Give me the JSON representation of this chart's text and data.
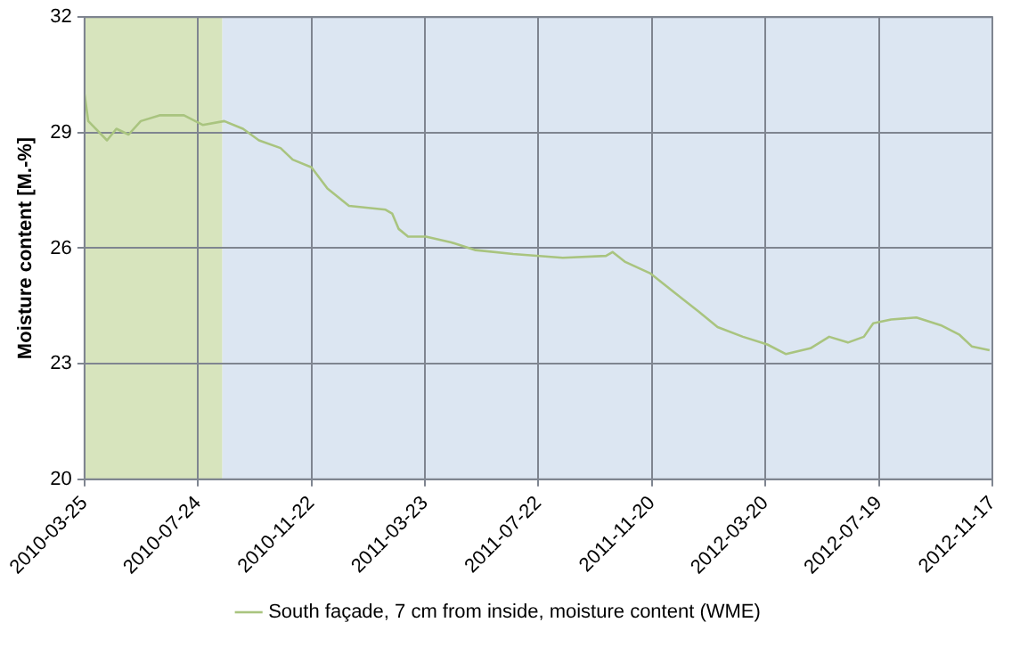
{
  "chart_data": {
    "type": "line",
    "ylabel": "Moisture content [M.-%]",
    "x": [
      "2010-03-25",
      "2010-03-29",
      "2010-04-18",
      "2010-04-28",
      "2010-05-11",
      "2010-05-24",
      "2010-06-13",
      "2010-07-09",
      "2010-07-29",
      "2010-08-21",
      "2010-09-10",
      "2010-09-27",
      "2010-10-20",
      "2010-11-02",
      "2010-11-22",
      "2010-12-09",
      "2011-01-01",
      "2011-02-09",
      "2011-02-16",
      "2011-02-23",
      "2011-03-05",
      "2011-03-24",
      "2011-04-20",
      "2011-05-16",
      "2011-06-25",
      "2011-08-17",
      "2011-10-02",
      "2011-10-09",
      "2011-10-22",
      "2011-11-18",
      "2011-12-14",
      "2012-01-09",
      "2012-01-29",
      "2012-02-25",
      "2012-03-22",
      "2012-04-11",
      "2012-05-07",
      "2012-05-27",
      "2012-06-16",
      "2012-07-03",
      "2012-07-13",
      "2012-08-01",
      "2012-08-28",
      "2012-09-23",
      "2012-10-13",
      "2012-10-26",
      "2012-11-14"
    ],
    "series": [
      {
        "name": "South façade, 7 cm from inside, moisture content (WME)",
        "color": "#a9c47f",
        "values": [
          30.0,
          29.3,
          28.8,
          29.1,
          28.95,
          29.3,
          29.45,
          29.45,
          29.2,
          29.3,
          29.1,
          28.8,
          28.6,
          28.3,
          28.1,
          27.55,
          27.1,
          27.0,
          26.9,
          26.5,
          26.3,
          26.3,
          26.15,
          25.95,
          25.85,
          25.75,
          25.8,
          25.9,
          25.65,
          25.35,
          24.85,
          24.35,
          23.95,
          23.7,
          23.5,
          23.25,
          23.4,
          23.7,
          23.55,
          23.7,
          24.05,
          24.15,
          24.2,
          24.0,
          23.75,
          23.45,
          23.35
        ]
      }
    ],
    "xlim": [
      "2010-03-25",
      "2012-11-17"
    ],
    "xticks": [
      "2010-03-25",
      "2010-07-24",
      "2010-11-22",
      "2011-03-23",
      "2011-07-22",
      "2011-11-20",
      "2012-03-20",
      "2012-07-19",
      "2012-11-17"
    ],
    "ylim": [
      20,
      32
    ],
    "yticks": [
      20,
      23,
      26,
      29,
      32
    ],
    "bands": [
      {
        "axis": "x",
        "from": "2010-03-25",
        "to": "2010-08-19",
        "color": "#d7e4bd"
      },
      {
        "axis": "x",
        "from": "2010-08-19",
        "to": "2012-11-17",
        "color": "#dce6f2"
      }
    ],
    "grid": true,
    "legend": "bottom",
    "marker": "none",
    "line_style": "solid"
  }
}
